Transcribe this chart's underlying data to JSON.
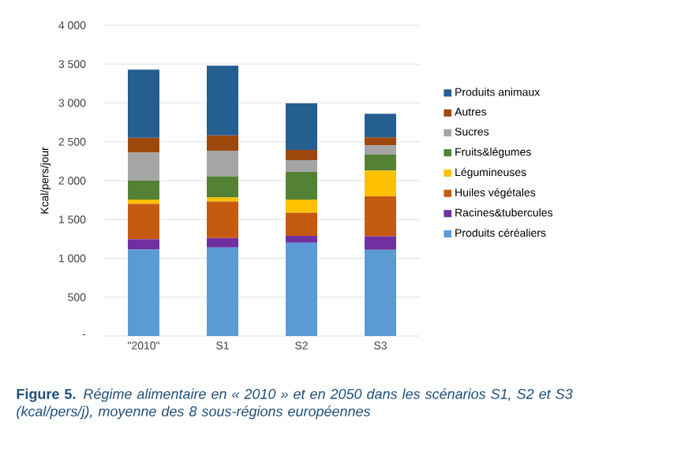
{
  "chart_data": {
    "type": "bar",
    "stacked": true,
    "ylabel": "Kcal/pers/jour",
    "categories": [
      "\"2010\"",
      "S1",
      "S2",
      "S3"
    ],
    "series": [
      {
        "name": "Produits céréaliers",
        "color": "#5b9bd5",
        "values": [
          1115,
          1140,
          1200,
          1110
        ]
      },
      {
        "name": "Racines&tubercules",
        "color": "#7030a0",
        "values": [
          130,
          120,
          90,
          175
        ]
      },
      {
        "name": "Huiles végétales",
        "color": "#c55a11",
        "values": [
          455,
          470,
          295,
          515
        ]
      },
      {
        "name": "Légumineuses",
        "color": "#ffc000",
        "values": [
          55,
          55,
          170,
          330
        ]
      },
      {
        "name": "Fruits&légumes",
        "color": "#548235",
        "values": [
          245,
          270,
          360,
          205
        ]
      },
      {
        "name": "Sucres",
        "color": "#a5a5a5",
        "values": [
          360,
          330,
          150,
          120
        ]
      },
      {
        "name": "Autres",
        "color": "#9e480e",
        "values": [
          190,
          195,
          130,
          100
        ]
      },
      {
        "name": "Produits animaux",
        "color": "#255e91",
        "values": [
          880,
          900,
          600,
          305
        ]
      }
    ],
    "ylim": [
      0,
      4000
    ],
    "yticks": [
      {
        "value": 0,
        "label": "-"
      },
      500,
      {
        "value": 1000,
        "label": "1 000"
      },
      {
        "value": 1500,
        "label": "1 500"
      },
      {
        "value": 2000,
        "label": "2 000"
      },
      {
        "value": 2500,
        "label": "2 500"
      },
      {
        "value": 3000,
        "label": "3 000"
      },
      {
        "value": 3500,
        "label": "3 500"
      },
      {
        "value": 4000,
        "label": "4 000"
      }
    ],
    "grid": "y",
    "legend": "right",
    "annotations": [
      "**Figure 5.** *Régime alimentaire en « 2010 » et en 2050 dans les scénarios S1, S2 et S3 (kcal/pers/j), moyenne des 8 sous-régions européennes*"
    ]
  }
}
